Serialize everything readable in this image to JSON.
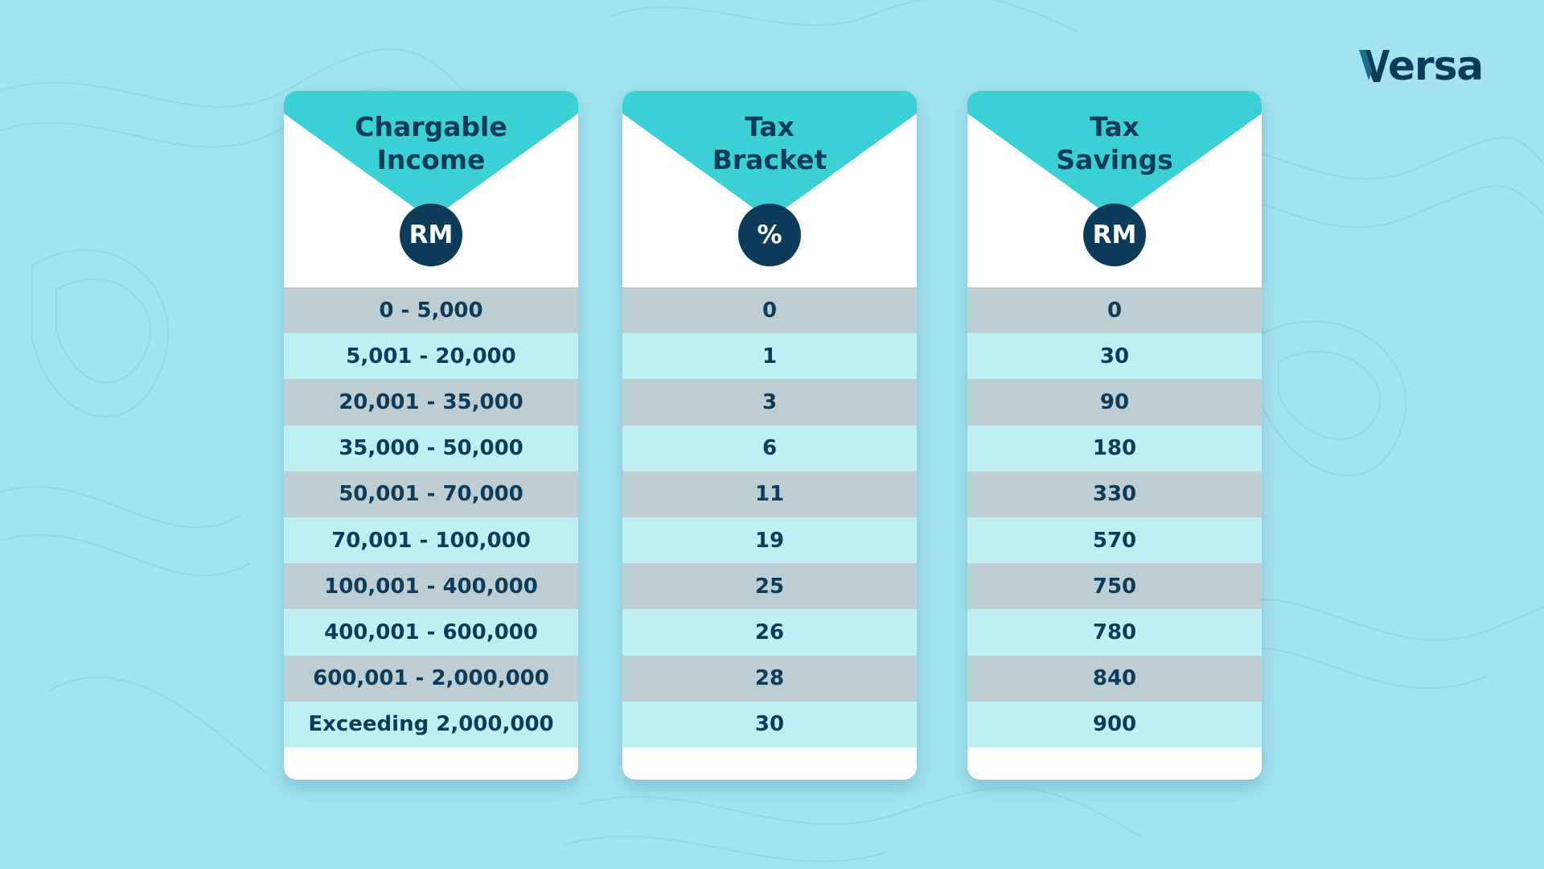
{
  "brand": {
    "name": "Versa",
    "primary_color": "#0d3c5b",
    "accent_color": "#3ad0d6",
    "background_color": "#a3e2f1"
  },
  "columns": [
    {
      "title_line1": "Chargable",
      "title_line2": "Income",
      "unit": "RM",
      "values": [
        "0 - 5,000",
        "5,001 - 20,000",
        "20,001 - 35,000",
        "35,000 - 50,000",
        "50,001 - 70,000",
        "70,001 - 100,000",
        "100,001 - 400,000",
        "400,001 - 600,000",
        "600,001 - 2,000,000",
        "Exceeding 2,000,000"
      ]
    },
    {
      "title_line1": "Tax",
      "title_line2": "Bracket",
      "unit": "%",
      "values": [
        "0",
        "1",
        "3",
        "6",
        "11",
        "19",
        "25",
        "26",
        "28",
        "30"
      ]
    },
    {
      "title_line1": "Tax",
      "title_line2": "Savings",
      "unit": "RM",
      "values": [
        "0",
        "30",
        "90",
        "180",
        "330",
        "570",
        "750",
        "780",
        "840",
        "900"
      ]
    }
  ],
  "row_colors": {
    "odd": "#bccdd4",
    "even": "#bdeff3"
  }
}
